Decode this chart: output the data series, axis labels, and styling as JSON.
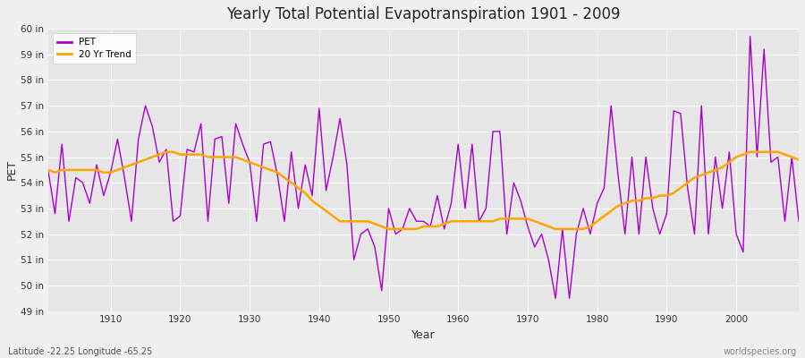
{
  "title": "Yearly Total Potential Evapotranspiration 1901 - 2009",
  "xlabel": "Year",
  "ylabel": "PET",
  "subtitle_left": "Latitude -22.25 Longitude -65.25",
  "subtitle_right": "worldspecies.org",
  "ylim": [
    49,
    60
  ],
  "xlim": [
    1901,
    2009
  ],
  "ytick_values": [
    49,
    50,
    51,
    52,
    53,
    54,
    55,
    56,
    57,
    58,
    59,
    60
  ],
  "xtick_values": [
    1910,
    1920,
    1930,
    1940,
    1950,
    1960,
    1970,
    1980,
    1990,
    2000
  ],
  "pet_color": "#AA00CC",
  "trend_color": "#FFA500",
  "bg_color": "#F0F0F0",
  "plot_bg_color": "#E8E8E8",
  "grid_color": "#FFFFFF",
  "years": [
    1901,
    1902,
    1903,
    1904,
    1905,
    1906,
    1907,
    1908,
    1909,
    1910,
    1911,
    1912,
    1913,
    1914,
    1915,
    1916,
    1917,
    1918,
    1919,
    1920,
    1921,
    1922,
    1923,
    1924,
    1925,
    1926,
    1927,
    1928,
    1929,
    1930,
    1931,
    1932,
    1933,
    1934,
    1935,
    1936,
    1937,
    1938,
    1939,
    1940,
    1941,
    1942,
    1943,
    1944,
    1945,
    1946,
    1947,
    1948,
    1949,
    1950,
    1951,
    1952,
    1953,
    1954,
    1955,
    1956,
    1957,
    1958,
    1959,
    1960,
    1961,
    1962,
    1963,
    1964,
    1965,
    1966,
    1967,
    1968,
    1969,
    1970,
    1971,
    1972,
    1973,
    1974,
    1975,
    1976,
    1977,
    1978,
    1979,
    1980,
    1981,
    1982,
    1983,
    1984,
    1985,
    1986,
    1987,
    1988,
    1989,
    1990,
    1991,
    1992,
    1993,
    1994,
    1995,
    1996,
    1997,
    1998,
    1999,
    2000,
    2001,
    2002,
    2003,
    2004,
    2005,
    2006,
    2007,
    2008,
    2009
  ],
  "pet_values": [
    54.5,
    52.8,
    55.5,
    52.5,
    54.2,
    54.0,
    53.2,
    54.7,
    53.5,
    54.4,
    55.7,
    54.2,
    52.5,
    55.7,
    57.0,
    56.2,
    54.8,
    55.3,
    52.5,
    52.7,
    55.3,
    55.2,
    56.3,
    52.5,
    55.7,
    55.8,
    53.2,
    56.3,
    55.5,
    54.8,
    52.5,
    55.5,
    55.6,
    54.3,
    52.5,
    55.2,
    53.0,
    54.7,
    53.5,
    56.9,
    53.7,
    55.0,
    56.5,
    54.7,
    51.0,
    52.0,
    52.2,
    51.5,
    49.8,
    53.0,
    52.0,
    52.2,
    53.0,
    52.5,
    52.5,
    52.3,
    53.5,
    52.2,
    53.2,
    55.5,
    53.0,
    55.5,
    52.5,
    53.0,
    56.0,
    56.0,
    52.0,
    54.0,
    53.3,
    52.3,
    51.5,
    52.0,
    51.0,
    49.5,
    52.2,
    49.5,
    52.0,
    53.0,
    52.0,
    53.2,
    53.8,
    57.0,
    54.3,
    52.0,
    55.0,
    52.0,
    55.0,
    53.0,
    52.0,
    52.8,
    56.8,
    56.7,
    53.8,
    52.0,
    57.0,
    52.0,
    55.0,
    53.0,
    55.2,
    52.0,
    51.3,
    59.7,
    55.0,
    59.2,
    54.8,
    55.0,
    52.5,
    55.0,
    52.5
  ],
  "trend_values": [
    54.5,
    54.4,
    54.5,
    54.5,
    54.5,
    54.5,
    54.5,
    54.5,
    54.4,
    54.4,
    54.5,
    54.6,
    54.7,
    54.8,
    54.9,
    55.0,
    55.1,
    55.2,
    55.2,
    55.1,
    55.1,
    55.1,
    55.1,
    55.0,
    55.0,
    55.0,
    55.0,
    55.0,
    54.9,
    54.8,
    54.7,
    54.6,
    54.5,
    54.4,
    54.2,
    54.0,
    53.8,
    53.6,
    53.3,
    53.1,
    52.9,
    52.7,
    52.5,
    52.5,
    52.5,
    52.5,
    52.5,
    52.4,
    52.3,
    52.2,
    52.2,
    52.2,
    52.2,
    52.2,
    52.3,
    52.3,
    52.3,
    52.4,
    52.5,
    52.5,
    52.5,
    52.5,
    52.5,
    52.5,
    52.5,
    52.6,
    52.6,
    52.6,
    52.6,
    52.6,
    52.5,
    52.4,
    52.3,
    52.2,
    52.2,
    52.2,
    52.2,
    52.2,
    52.3,
    52.5,
    52.7,
    52.9,
    53.1,
    53.2,
    53.3,
    53.3,
    53.4,
    53.4,
    53.5,
    53.5,
    53.6,
    53.8,
    54.0,
    54.2,
    54.3,
    54.4,
    54.5,
    54.6,
    54.8,
    55.0,
    55.1,
    55.2,
    55.2,
    55.2,
    55.2,
    55.2,
    55.1,
    55.0,
    54.9
  ]
}
